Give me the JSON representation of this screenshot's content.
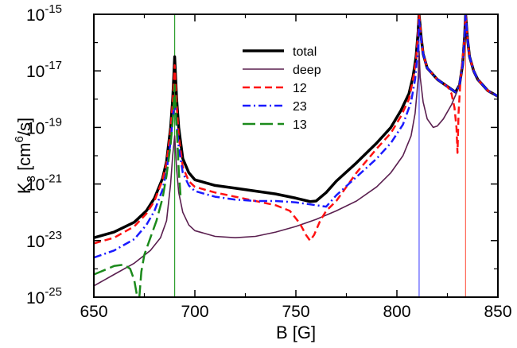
{
  "chart_data": {
    "type": "line",
    "title": "",
    "xlabel": "B [G]",
    "ylabel": "K",
    "ylabel_sub": "3",
    "ylabel_open": " [cm",
    "ylabel_sup": "6",
    "ylabel_close": "/s]",
    "xlim": [
      650,
      850
    ],
    "ylim_log10": [
      -25,
      -15
    ],
    "y_scale": "log",
    "x_ticks": [
      650,
      700,
      750,
      800,
      850
    ],
    "y_ticks": [
      {
        "exp": -15,
        "base": "10",
        "sup": "-15"
      },
      {
        "exp": -17,
        "base": "10",
        "sup": "-17"
      },
      {
        "exp": -19,
        "base": "10",
        "sup": "-19"
      },
      {
        "exp": -21,
        "base": "10",
        "sup": "-21"
      },
      {
        "exp": -23,
        "base": "10",
        "sup": "-23"
      },
      {
        "exp": -25,
        "base": "10",
        "sup": "-25"
      }
    ],
    "grid": false,
    "legend_position": "top-center",
    "resonances": [
      {
        "B": 690,
        "color": "#2e9e2e"
      },
      {
        "B": 811,
        "color": "#5555ff"
      },
      {
        "B": 834,
        "color": "#ff6655"
      }
    ],
    "series": [
      {
        "name": "total",
        "color": "#000000",
        "style": "solid",
        "width": 3.5,
        "points": [
          [
            650,
            -22.9
          ],
          [
            660,
            -22.7
          ],
          [
            670,
            -22.35
          ],
          [
            676,
            -21.95
          ],
          [
            680,
            -21.5
          ],
          [
            684,
            -20.8
          ],
          [
            686,
            -20.2
          ],
          [
            688,
            -19.0
          ],
          [
            689,
            -18.0
          ],
          [
            690,
            -16.5
          ],
          [
            691,
            -18.0
          ],
          [
            692,
            -19.0
          ],
          [
            694,
            -20.1
          ],
          [
            697,
            -20.6
          ],
          [
            700,
            -20.85
          ],
          [
            710,
            -21.05
          ],
          [
            720,
            -21.15
          ],
          [
            730,
            -21.25
          ],
          [
            740,
            -21.35
          ],
          [
            750,
            -21.5
          ],
          [
            757,
            -21.62
          ],
          [
            760,
            -21.6
          ],
          [
            765,
            -21.3
          ],
          [
            770,
            -20.9
          ],
          [
            780,
            -20.25
          ],
          [
            790,
            -19.55
          ],
          [
            797,
            -19.0
          ],
          [
            802,
            -18.4
          ],
          [
            806,
            -17.8
          ],
          [
            808,
            -17.2
          ],
          [
            809.5,
            -16.5
          ],
          [
            810.5,
            -15.6
          ],
          [
            811,
            -15.0
          ],
          [
            812,
            -15.8
          ],
          [
            813,
            -16.4
          ],
          [
            815,
            -16.9
          ],
          [
            820,
            -17.3
          ],
          [
            825,
            -17.55
          ],
          [
            829,
            -17.75
          ],
          [
            831,
            -17.5
          ],
          [
            832.5,
            -16.8
          ],
          [
            833.5,
            -15.8
          ],
          [
            834,
            -15.0
          ],
          [
            835,
            -15.9
          ],
          [
            836,
            -16.5
          ],
          [
            838,
            -17.0
          ],
          [
            840,
            -17.3
          ],
          [
            845,
            -17.7
          ],
          [
            850,
            -17.9
          ]
        ]
      },
      {
        "name": "deep",
        "color": "#5a1f4f",
        "style": "solid",
        "width": 1.6,
        "points": [
          [
            650,
            -24.6
          ],
          [
            660,
            -24.2
          ],
          [
            670,
            -23.8
          ],
          [
            678,
            -23.35
          ],
          [
            683,
            -22.9
          ],
          [
            686,
            -22.3
          ],
          [
            688,
            -21.0
          ],
          [
            689,
            -20.0
          ],
          [
            690,
            -19.3
          ],
          [
            691,
            -20.5
          ],
          [
            692,
            -21.3
          ],
          [
            694,
            -22.0
          ],
          [
            697,
            -22.45
          ],
          [
            700,
            -22.65
          ],
          [
            710,
            -22.85
          ],
          [
            720,
            -22.9
          ],
          [
            730,
            -22.85
          ],
          [
            740,
            -22.7
          ],
          [
            750,
            -22.5
          ],
          [
            760,
            -22.25
          ],
          [
            770,
            -21.95
          ],
          [
            780,
            -21.6
          ],
          [
            790,
            -21.1
          ],
          [
            797,
            -20.6
          ],
          [
            803,
            -20.0
          ],
          [
            807,
            -19.3
          ],
          [
            809,
            -18.5
          ],
          [
            810.5,
            -17.3
          ],
          [
            811,
            -16.3
          ],
          [
            811.5,
            -17.2
          ],
          [
            813,
            -18.1
          ],
          [
            815,
            -18.7
          ],
          [
            818,
            -19.0
          ],
          [
            820,
            -18.95
          ],
          [
            823,
            -18.7
          ],
          [
            827,
            -18.2
          ],
          [
            830,
            -17.7
          ],
          [
            832,
            -17.0
          ],
          [
            833.3,
            -16.0
          ],
          [
            834,
            -15.1
          ],
          [
            835,
            -16.0
          ],
          [
            837,
            -16.8
          ],
          [
            840,
            -17.3
          ],
          [
            845,
            -17.7
          ],
          [
            850,
            -17.9
          ]
        ]
      },
      {
        "name": "12",
        "color": "#ff1111",
        "style": "dashed",
        "width": 2.5,
        "points": [
          [
            650,
            -23.1
          ],
          [
            660,
            -22.9
          ],
          [
            670,
            -22.5
          ],
          [
            676,
            -22.05
          ],
          [
            680,
            -21.6
          ],
          [
            684,
            -20.85
          ],
          [
            686,
            -20.25
          ],
          [
            688,
            -19.1
          ],
          [
            689,
            -18.1
          ],
          [
            690,
            -16.8
          ],
          [
            691,
            -18.2
          ],
          [
            692,
            -19.3
          ],
          [
            694,
            -20.4
          ],
          [
            697,
            -20.9
          ],
          [
            700,
            -21.1
          ],
          [
            710,
            -21.3
          ],
          [
            720,
            -21.45
          ],
          [
            730,
            -21.6
          ],
          [
            740,
            -21.75
          ],
          [
            747,
            -21.95
          ],
          [
            752,
            -22.4
          ],
          [
            755,
            -22.8
          ],
          [
            757,
            -23.0
          ],
          [
            759,
            -22.8
          ],
          [
            762,
            -22.3
          ],
          [
            765,
            -21.95
          ],
          [
            770,
            -21.6
          ],
          [
            780,
            -20.6
          ],
          [
            790,
            -19.75
          ],
          [
            797,
            -19.2
          ],
          [
            802,
            -18.6
          ],
          [
            806,
            -18.0
          ],
          [
            808,
            -17.3
          ],
          [
            809.5,
            -16.6
          ],
          [
            810.5,
            -15.6
          ],
          [
            811,
            -15.0
          ],
          [
            812,
            -15.8
          ],
          [
            813,
            -16.4
          ],
          [
            815,
            -16.9
          ],
          [
            820,
            -17.3
          ],
          [
            825,
            -17.55
          ],
          [
            827,
            -17.8
          ],
          [
            828.5,
            -18.3
          ],
          [
            829.5,
            -19.0
          ],
          [
            830,
            -19.9
          ],
          [
            830.5,
            -18.5
          ],
          [
            831.5,
            -17.3
          ],
          [
            832.5,
            -16.6
          ],
          [
            833.5,
            -15.8
          ],
          [
            834,
            -15.0
          ],
          [
            835,
            -15.9
          ],
          [
            836,
            -16.5
          ],
          [
            838,
            -17.0
          ],
          [
            840,
            -17.3
          ],
          [
            845,
            -17.7
          ],
          [
            850,
            -17.9
          ]
        ]
      },
      {
        "name": "23",
        "color": "#1a1aff",
        "style": "dashdot",
        "width": 2.5,
        "points": [
          [
            650,
            -23.6
          ],
          [
            660,
            -23.35
          ],
          [
            670,
            -22.95
          ],
          [
            676,
            -22.45
          ],
          [
            680,
            -21.95
          ],
          [
            684,
            -21.2
          ],
          [
            686,
            -20.55
          ],
          [
            688,
            -19.5
          ],
          [
            689,
            -18.7
          ],
          [
            690,
            -18.1
          ],
          [
            691,
            -18.9
          ],
          [
            692,
            -19.7
          ],
          [
            694,
            -20.6
          ],
          [
            697,
            -21.05
          ],
          [
            700,
            -21.25
          ],
          [
            710,
            -21.45
          ],
          [
            720,
            -21.55
          ],
          [
            730,
            -21.6
          ],
          [
            740,
            -21.6
          ],
          [
            750,
            -21.65
          ],
          [
            760,
            -21.75
          ],
          [
            765,
            -21.8
          ],
          [
            770,
            -21.4
          ],
          [
            780,
            -20.75
          ],
          [
            790,
            -20.1
          ],
          [
            797,
            -19.55
          ],
          [
            803,
            -18.9
          ],
          [
            807,
            -18.1
          ],
          [
            809,
            -17.3
          ],
          [
            810.5,
            -16.2
          ],
          [
            811,
            -15.2
          ],
          [
            812,
            -15.9
          ],
          [
            813,
            -16.4
          ],
          [
            815,
            -16.9
          ],
          [
            820,
            -17.3
          ],
          [
            825,
            -17.55
          ],
          [
            829,
            -17.75
          ],
          [
            831,
            -17.5
          ],
          [
            832.5,
            -16.8
          ],
          [
            833.5,
            -15.8
          ],
          [
            834,
            -15.0
          ],
          [
            835,
            -15.9
          ],
          [
            836,
            -16.5
          ],
          [
            838,
            -17.0
          ],
          [
            840,
            -17.3
          ],
          [
            845,
            -17.7
          ],
          [
            850,
            -17.9
          ]
        ]
      },
      {
        "name": "13",
        "color": "#1b8a1b",
        "style": "longdash",
        "width": 2.5,
        "points": [
          [
            650,
            -24.2
          ],
          [
            655,
            -24.05
          ],
          [
            660,
            -23.9
          ],
          [
            665,
            -23.85
          ],
          [
            668,
            -24.0
          ],
          [
            670,
            -24.4
          ],
          [
            671.5,
            -25.0
          ],
          [
            672.5,
            -25.0
          ],
          [
            673.5,
            -24.1
          ],
          [
            675,
            -23.5
          ],
          [
            678,
            -22.9
          ],
          [
            681,
            -22.3
          ],
          [
            684,
            -21.5
          ],
          [
            686,
            -20.7
          ],
          [
            688,
            -19.6
          ],
          [
            689,
            -18.8
          ],
          [
            690,
            -17.5
          ],
          [
            691,
            -19.0
          ],
          [
            692,
            -20.5
          ],
          [
            693,
            -21.5
          ]
        ]
      }
    ]
  }
}
